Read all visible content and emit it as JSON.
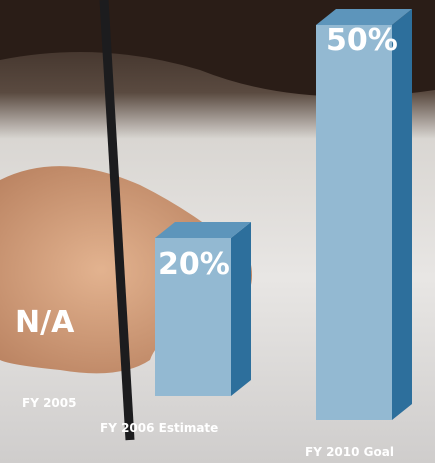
{
  "chart_data": {
    "type": "bar3d",
    "categories": [
      "FY 2005",
      "FY 2006 Estimate",
      "FY 2010 Goal"
    ],
    "values": [
      null,
      20,
      50
    ],
    "value_labels": [
      "N/A",
      "20%",
      "50%"
    ],
    "color": "#93b9d2"
  }
}
